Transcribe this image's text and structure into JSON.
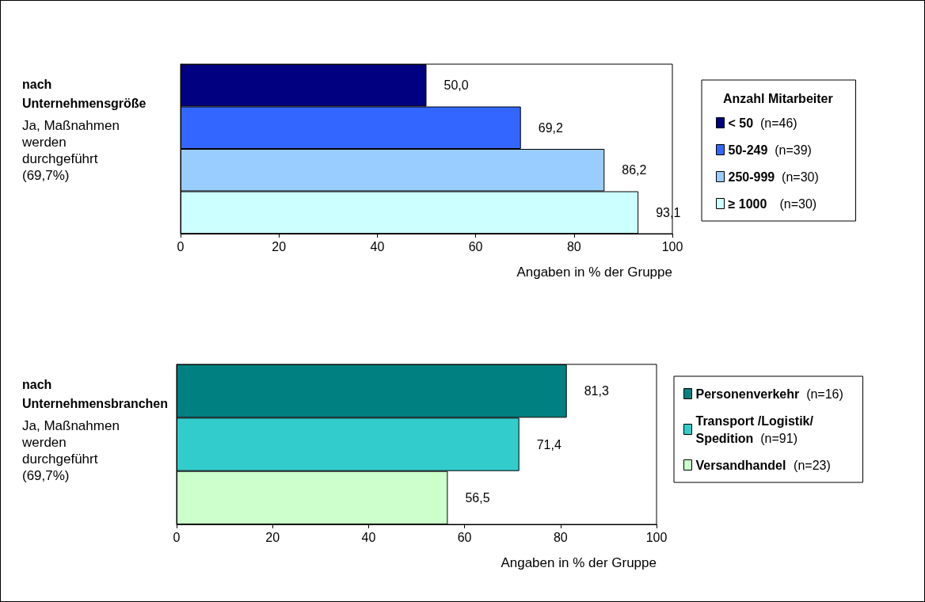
{
  "chart_data": [
    {
      "type": "bar",
      "orientation": "horizontal",
      "title": "nach Unternehmensgröße",
      "subtitle": "Ja, Maßnahmen werden durchgeführt (69,7%)",
      "xlabel": "Angaben in % der Gruppe",
      "legend_title": "Anzahl Mitarbeiter",
      "legend": "right",
      "categories": [
        null
      ],
      "xlim": [
        0,
        100
      ],
      "xticks": [
        0,
        20,
        40,
        60,
        80,
        100
      ],
      "grid": false,
      "series": [
        {
          "name": "< 50 (n=46)",
          "color": "#000080",
          "values": [
            50.0
          ],
          "value_labels": [
            "50,0"
          ]
        },
        {
          "name": "50-249 (n=39)",
          "color": "#3366ff",
          "values": [
            69.2
          ],
          "value_labels": [
            "69,2"
          ]
        },
        {
          "name": "250-999 (n=30)",
          "color": "#99ccff",
          "values": [
            86.2
          ],
          "value_labels": [
            "86,2"
          ]
        },
        {
          "name": "≥ 1000 (n=30)",
          "color": "#ccffff",
          "values": [
            93.1
          ],
          "value_labels": [
            "93,1"
          ]
        }
      ]
    },
    {
      "type": "bar",
      "orientation": "horizontal",
      "title": "nach Unternehmensbranchen",
      "subtitle": "Ja, Maßnahmen werden durchgeführt (69,7%)",
      "xlabel": "Angaben in % der Gruppe",
      "legend": "right",
      "categories": [
        null
      ],
      "xlim": [
        0,
        100
      ],
      "xticks": [
        0,
        20,
        40,
        60,
        80,
        100
      ],
      "grid": false,
      "series": [
        {
          "name": "Personenverkehr (n=16)",
          "color": "#008080",
          "values": [
            81.3
          ],
          "value_labels": [
            "81,3"
          ]
        },
        {
          "name": "Transport /Logistik/ Spedition (n=91)",
          "color": "#33cccc",
          "values": [
            71.4
          ],
          "value_labels": [
            "71,4"
          ]
        },
        {
          "name": "Versandhandel (n=23)",
          "color": "#ccffcc",
          "values": [
            56.5
          ],
          "value_labels": [
            "56,5"
          ]
        }
      ]
    }
  ]
}
